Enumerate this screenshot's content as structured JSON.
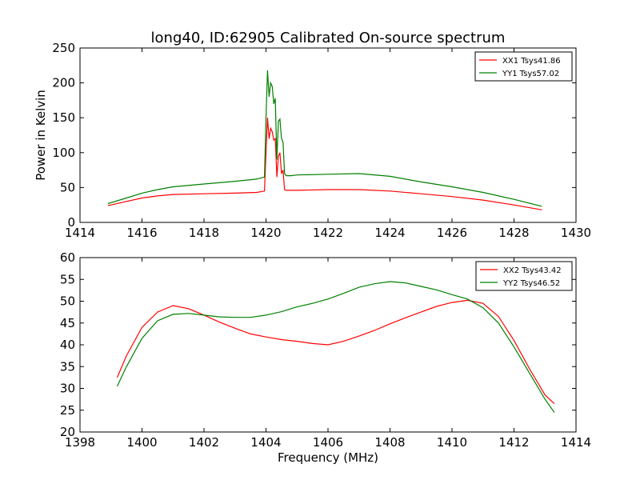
{
  "figure": {
    "title": "long40, ID:62905 Calibrated On-source spectrum"
  },
  "chart_data": [
    {
      "type": "line",
      "title": "long40, ID:62905 Calibrated On-source spectrum",
      "xlabel": "",
      "ylabel": "Power in Kelvin",
      "xlim": [
        1414,
        1430
      ],
      "ylim": [
        0,
        250
      ],
      "xticks": [
        1414,
        1416,
        1418,
        1420,
        1422,
        1424,
        1426,
        1428,
        1430
      ],
      "yticks": [
        0,
        50,
        100,
        150,
        200,
        250
      ],
      "grid": false,
      "legend": "top-right",
      "series": [
        {
          "name": "XX1 Tsys41.86",
          "color": "#ff0000",
          "x": [
            1414.9,
            1415.5,
            1416.0,
            1416.5,
            1417.0,
            1418.0,
            1419.0,
            1419.7,
            1419.95,
            1420.0,
            1420.05,
            1420.1,
            1420.15,
            1420.2,
            1420.25,
            1420.3,
            1420.35,
            1420.4,
            1420.45,
            1420.5,
            1420.55,
            1420.6,
            1420.65,
            1420.8,
            1421.0,
            1422.0,
            1423.0,
            1424.0,
            1425.0,
            1426.0,
            1427.0,
            1428.0,
            1428.9
          ],
          "y": [
            24,
            30,
            35,
            38,
            40,
            41,
            42,
            43,
            45,
            100,
            150,
            120,
            135,
            130,
            118,
            120,
            65,
            95,
            100,
            70,
            75,
            47,
            46,
            46,
            46,
            47,
            47,
            45,
            41,
            37,
            32,
            25,
            18
          ]
        },
        {
          "name": "YY1 Tsys57.02",
          "color": "#008000",
          "x": [
            1414.9,
            1415.5,
            1416.0,
            1416.5,
            1417.0,
            1418.0,
            1419.0,
            1419.7,
            1419.95,
            1420.0,
            1420.05,
            1420.1,
            1420.15,
            1420.2,
            1420.25,
            1420.3,
            1420.35,
            1420.4,
            1420.45,
            1420.5,
            1420.55,
            1420.6,
            1420.65,
            1420.8,
            1421.0,
            1422.0,
            1423.0,
            1424.0,
            1425.0,
            1426.0,
            1427.0,
            1428.0,
            1428.9
          ],
          "y": [
            27,
            35,
            42,
            47,
            51,
            55,
            59,
            62,
            65,
            150,
            218,
            180,
            200,
            195,
            170,
            178,
            90,
            145,
            148,
            120,
            115,
            70,
            67,
            67,
            68,
            69,
            70,
            66,
            58,
            51,
            43,
            33,
            23
          ]
        }
      ]
    },
    {
      "type": "line",
      "title": "",
      "xlabel": "Frequency (MHz)",
      "ylabel": "",
      "xlim": [
        1398,
        1414
      ],
      "ylim": [
        20,
        60
      ],
      "xticks": [
        1398,
        1400,
        1402,
        1404,
        1406,
        1408,
        1410,
        1412,
        1414
      ],
      "yticks": [
        20,
        25,
        30,
        35,
        40,
        45,
        50,
        55,
        60
      ],
      "grid": false,
      "legend": "top-right",
      "series": [
        {
          "name": "XX2 Tsys43.42",
          "color": "#ff0000",
          "x": [
            1399.2,
            1399.5,
            1400.0,
            1400.5,
            1401.0,
            1401.5,
            1402.0,
            1402.5,
            1403.0,
            1403.5,
            1404.0,
            1404.5,
            1405.0,
            1405.5,
            1406.0,
            1406.5,
            1407.0,
            1407.5,
            1408.0,
            1408.5,
            1409.0,
            1409.5,
            1410.0,
            1410.5,
            1411.0,
            1411.5,
            1412.0,
            1412.5,
            1413.0,
            1413.3
          ],
          "y": [
            32.5,
            37.5,
            44.0,
            47.5,
            49.0,
            48.3,
            46.8,
            45.2,
            43.8,
            42.5,
            41.8,
            41.2,
            40.8,
            40.3,
            40.0,
            40.8,
            42.0,
            43.3,
            44.8,
            46.2,
            47.5,
            48.8,
            49.7,
            50.2,
            49.5,
            46.5,
            41.0,
            34.5,
            28.5,
            26.5
          ]
        },
        {
          "name": "YY2 Tsys46.52",
          "color": "#008000",
          "x": [
            1399.2,
            1399.5,
            1400.0,
            1400.5,
            1401.0,
            1401.5,
            1402.0,
            1402.5,
            1403.0,
            1403.5,
            1404.0,
            1404.5,
            1405.0,
            1405.5,
            1406.0,
            1406.5,
            1407.0,
            1407.5,
            1408.0,
            1408.5,
            1409.0,
            1409.5,
            1410.0,
            1410.5,
            1411.0,
            1411.5,
            1412.0,
            1412.5,
            1413.0,
            1413.3
          ],
          "y": [
            30.5,
            35.0,
            41.5,
            45.5,
            47.0,
            47.2,
            46.8,
            46.4,
            46.3,
            46.3,
            46.8,
            47.6,
            48.7,
            49.5,
            50.5,
            51.8,
            53.2,
            54.0,
            54.5,
            54.2,
            53.4,
            52.6,
            51.5,
            50.5,
            48.5,
            45.0,
            39.5,
            33.5,
            27.5,
            24.5
          ]
        }
      ]
    }
  ]
}
